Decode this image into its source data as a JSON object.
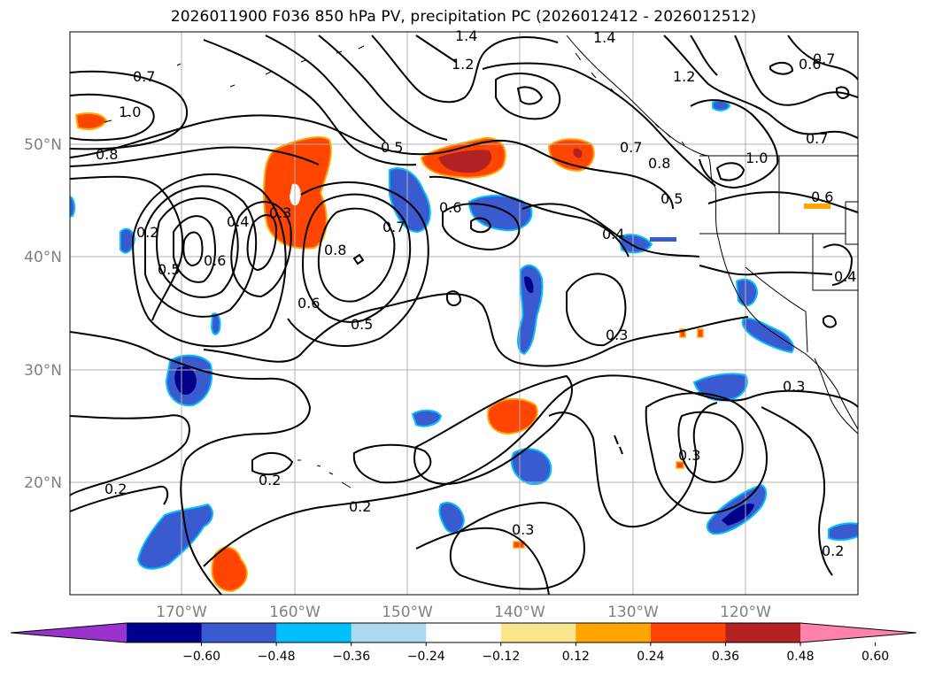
{
  "title": "2026011900 F036 850 hPa PV, precipitation PC (2026012412 - 2026012512)",
  "map": {
    "lon_labels": [
      "170°W",
      "160°W",
      "150°W",
      "140°W",
      "130°W",
      "120°W"
    ],
    "lat_labels": [
      "50°N",
      "40°N",
      "30°N",
      "20°N"
    ],
    "grid": true
  },
  "contour_labels": [
    "0.7",
    "1.0",
    "0.8",
    "1.4",
    "1.2",
    "1.4",
    "1.2",
    "0.6",
    "0.7",
    "0.7",
    "0.2",
    "0.5",
    "0.6",
    "0.4",
    "0.3",
    "0.8",
    "0.5",
    "0.7",
    "0.6",
    "0.5",
    "0.6",
    "0.7",
    "0.8",
    "0.5",
    "0.4",
    "0.6",
    "0.4",
    "0.3",
    "0.3",
    "0.3",
    "0.3",
    "0.2",
    "0.2",
    "0.2",
    "0.2",
    "1.0"
  ],
  "colorbar": {
    "colors": [
      "#9a32cd",
      "#00008b",
      "#3a5bd0",
      "#00bfff",
      "#add8f0",
      "#ffffff",
      "#fae68c",
      "#ffa500",
      "#ff4500",
      "#b22222",
      "#ff82ab",
      "#ff82ab"
    ],
    "tick_labels": [
      "−0.60",
      "−0.48",
      "−0.36",
      "−0.24",
      "−0.12",
      "0.12",
      "0.24",
      "0.36",
      "0.48",
      "0.60"
    ],
    "extend": "both"
  }
}
